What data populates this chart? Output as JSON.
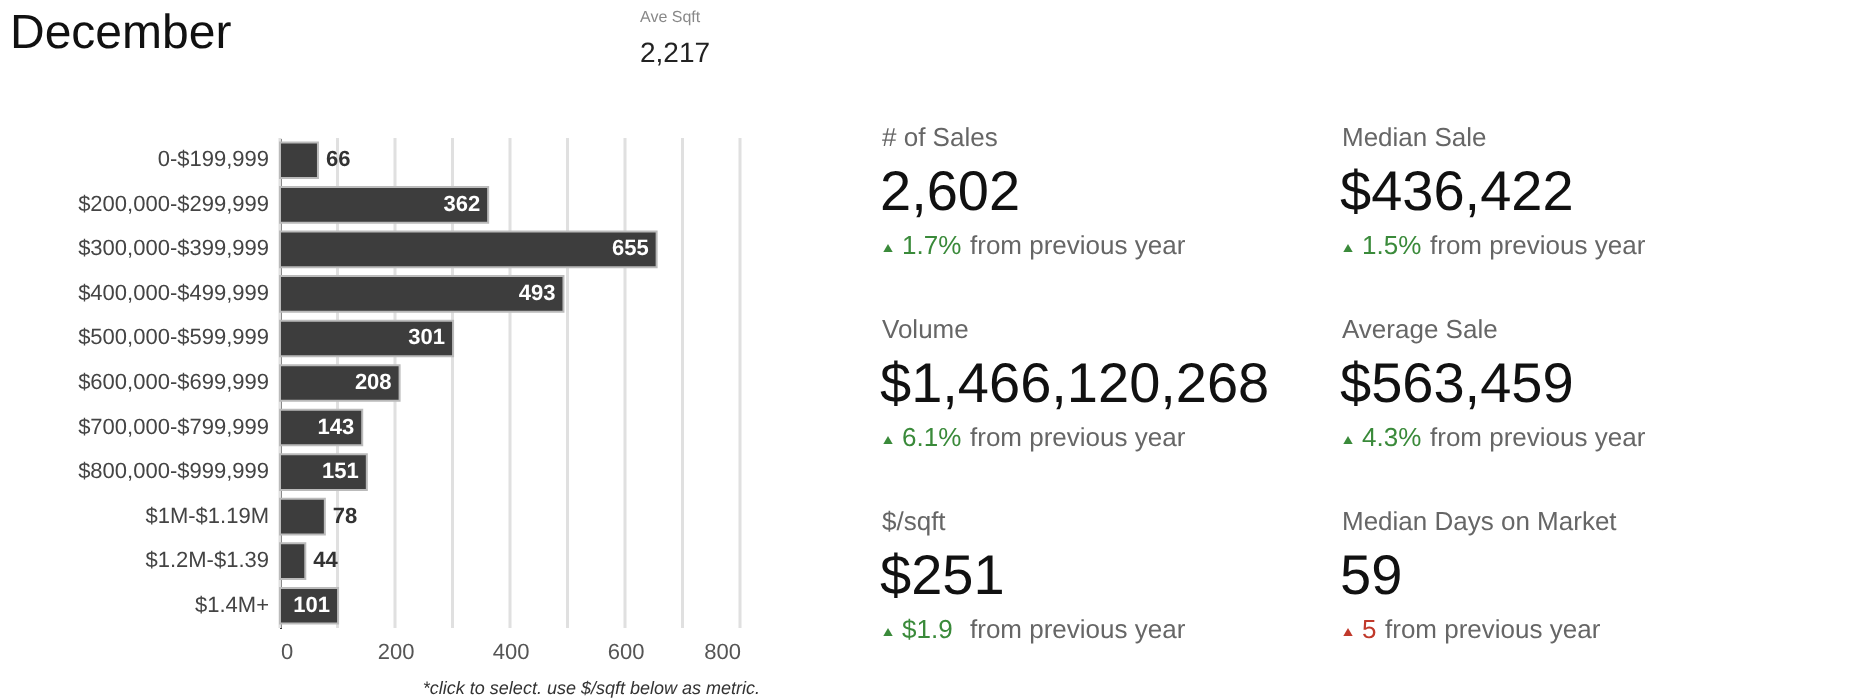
{
  "chart_data": [
    {
      "type": "bar",
      "orientation": "horizontal",
      "title": "December",
      "categories": [
        "0-$199,999",
        "$200,000-$299,999",
        "$300,000-$399,999",
        "$400,000-$499,999",
        "$500,000-$599,999",
        "$600,000-$699,999",
        "$700,000-$799,999",
        "$800,000-$999,999",
        "$1M-$1.19M",
        "$1.2M-$1.39",
        "$1.4M+"
      ],
      "values": [
        66,
        362,
        655,
        493,
        301,
        208,
        143,
        151,
        78,
        44,
        101
      ],
      "color": "#3d3d3d",
      "xlim": [
        0,
        800
      ],
      "xticks": [
        0,
        {
          "value": 100,
          "label": null
        },
        200,
        {
          "value": 300,
          "label": null
        },
        400,
        {
          "value": 500,
          "label": null
        },
        600,
        {
          "value": 700,
          "label": null
        },
        800
      ],
      "grid": "x",
      "data_labels": true,
      "annotations": [
        "Ave Sqft",
        "2,217",
        "*click to select.  use $/sqft below as metric."
      ]
    },
    {
      "type": "other",
      "annotations": [
        "# of Sales",
        "2,602",
        "1.7%",
        "from previous year",
        "Median Sale",
        "$436,422",
        "1.5%",
        "from previous year",
        "Volume",
        "$1,466,120,268",
        "6.1%",
        "from previous year",
        "Average Sale",
        "$563,459",
        "4.3%",
        "from previous year",
        "$/sqft",
        "$251",
        "$1.9",
        "from previous year",
        "Median Days on Market",
        "59",
        "5",
        "from previous year"
      ],
      "colors": [
        "#3a8a3a",
        "#3a8a3a",
        "#3a8a3a",
        "#3a8a3a",
        "#3a8a3a",
        "#c0392b"
      ]
    }
  ]
}
